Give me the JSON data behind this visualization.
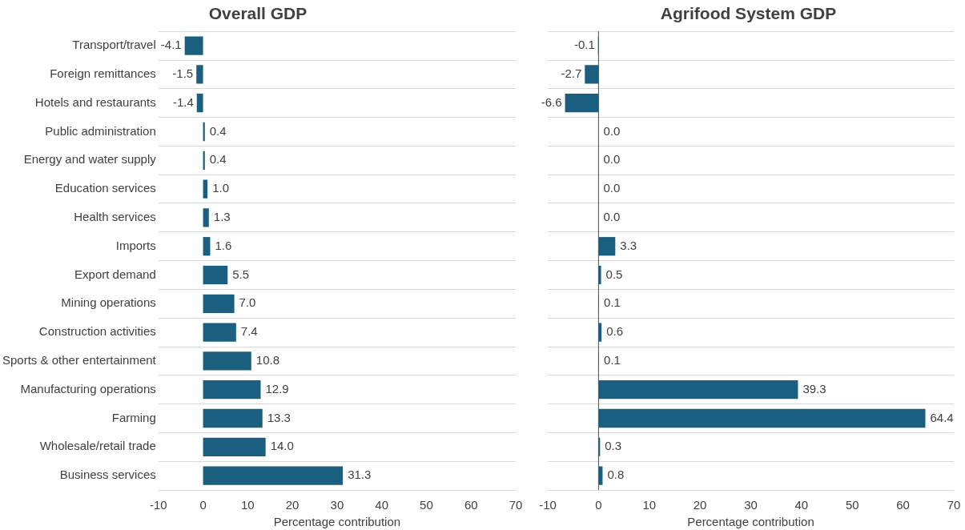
{
  "chart_data": [
    {
      "type": "bar",
      "title": "Overall GDP",
      "xlabel": "Percentage contribution",
      "orientation": "horizontal",
      "color": "#1b5f80",
      "categories": [
        "Transport/travel",
        "Foreign remittances",
        "Hotels and restaurants",
        "Public administration",
        "Energy and water supply",
        "Education services",
        "Health services",
        "Imports",
        "Export demand",
        "Mining operations",
        "Construction activities",
        "Sports & other entertainment",
        "Manufacturing operations",
        "Farming",
        "Wholesale/retail trade",
        "Business services"
      ],
      "values": [
        -4.1,
        -1.5,
        -1.4,
        0.4,
        0.4,
        1.0,
        1.3,
        1.6,
        5.5,
        7.0,
        7.4,
        10.8,
        12.9,
        13.3,
        14.0,
        31.3
      ],
      "value_labels": [
        "-4.1",
        "-1.5",
        "-1.4",
        "0.4",
        "0.4",
        "1.0",
        "1.3",
        "1.6",
        "5.5",
        "7.0",
        "7.4",
        "10.8",
        "12.9",
        "13.3",
        "14.0",
        "31.3"
      ],
      "xlim": [
        -10,
        70
      ],
      "xticks": [
        -10,
        0,
        10,
        20,
        30,
        40,
        50,
        60,
        70
      ],
      "grid": "y",
      "legend": false
    },
    {
      "type": "bar",
      "title": "Agrifood System GDP",
      "xlabel": "Percentage contribution",
      "orientation": "horizontal",
      "color": "#1b5f80",
      "categories": [
        null,
        null,
        null,
        null,
        null,
        null,
        null,
        null,
        null,
        null,
        null,
        null,
        null,
        null,
        null,
        null
      ],
      "values": [
        -0.1,
        -2.7,
        -6.6,
        0.0,
        0.0,
        0.0,
        0.0,
        3.3,
        0.5,
        0.1,
        0.6,
        0.1,
        39.3,
        64.4,
        0.3,
        0.8
      ],
      "value_labels": [
        "-0.1",
        "-2.7",
        "-6.6",
        "0.0",
        "0.0",
        "0.0",
        "0.0",
        "3.3",
        "0.5",
        "0.1",
        "0.6",
        "0.1",
        "39.3",
        "64.4",
        "0.3",
        "0.8"
      ],
      "xlim": [
        -10,
        70
      ],
      "xticks": [
        -10,
        0,
        10,
        20,
        30,
        40,
        50,
        60,
        70
      ],
      "grid": "y",
      "legend": false,
      "ref_lines": [
        {
          "axis": "x",
          "value": 0,
          "color": "#1b5f80"
        }
      ]
    }
  ]
}
